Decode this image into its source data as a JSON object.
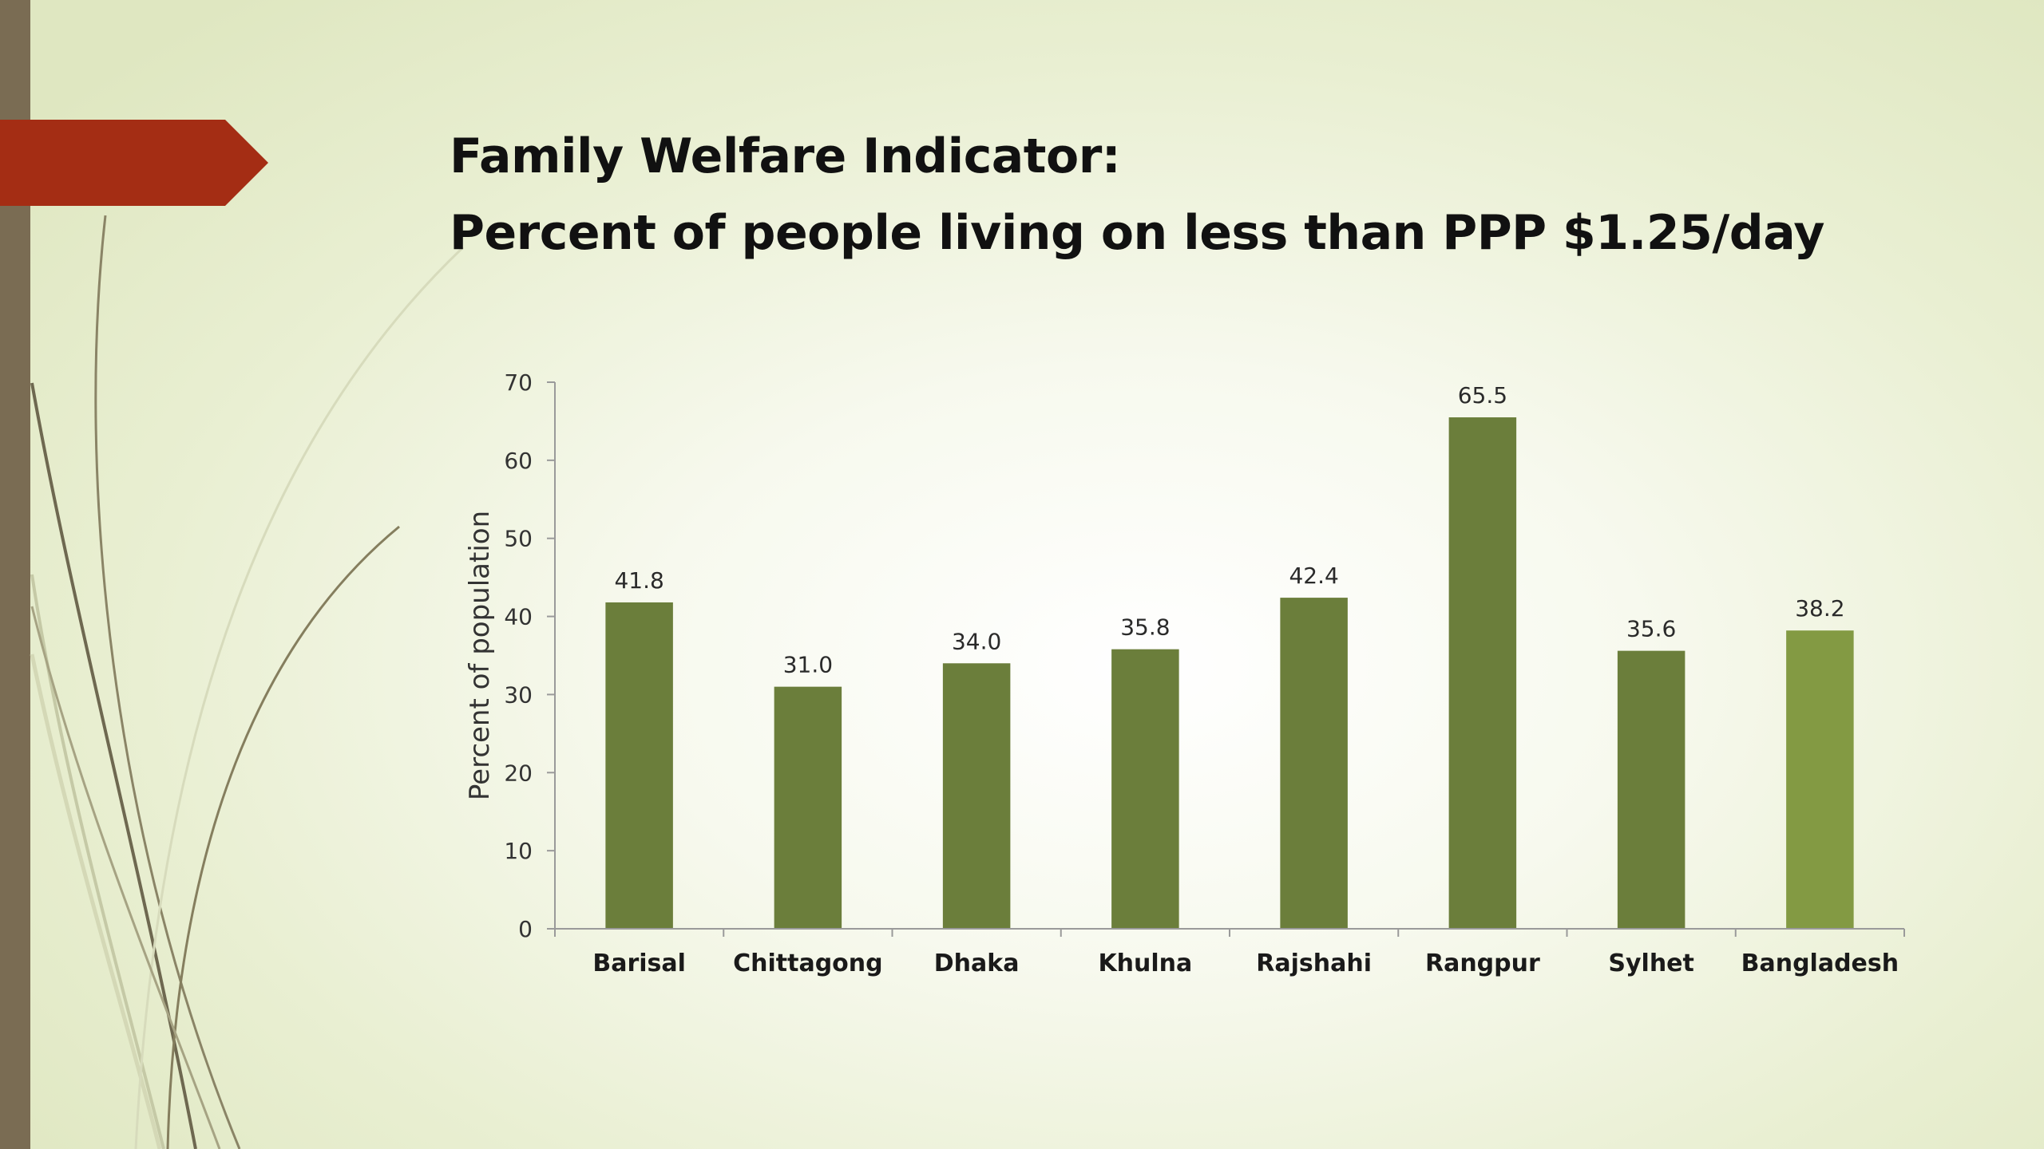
{
  "slide": {
    "title_line1": "Family Welfare Indicator:",
    "title_line2": "Percent of people living on less than PPP $1.25/day"
  },
  "theme": {
    "bar_color": "#6b7e3b",
    "highlight_bar_color": "#839a43",
    "accent_color": "#a42d14",
    "side_bar_color": "#7a6c53"
  },
  "chart_data": {
    "type": "bar",
    "categories": [
      "Barisal",
      "Chittagong",
      "Dhaka",
      "Khulna",
      "Rajshahi",
      "Rangpur",
      "Sylhet",
      "Bangladesh"
    ],
    "values": [
      41.8,
      31.0,
      34.0,
      35.8,
      42.4,
      65.5,
      35.6,
      38.2
    ],
    "data_labels": [
      "41.8",
      "31.0",
      "34.0",
      "35.8",
      "42.4",
      "65.5",
      "35.6",
      "38.2"
    ],
    "highlight_category": "Bangladesh",
    "ylabel": "Percent of population",
    "ylim": [
      0,
      70
    ],
    "yticks": [
      0,
      10,
      20,
      30,
      40,
      50,
      60,
      70
    ],
    "grid": false,
    "legend": "none"
  }
}
